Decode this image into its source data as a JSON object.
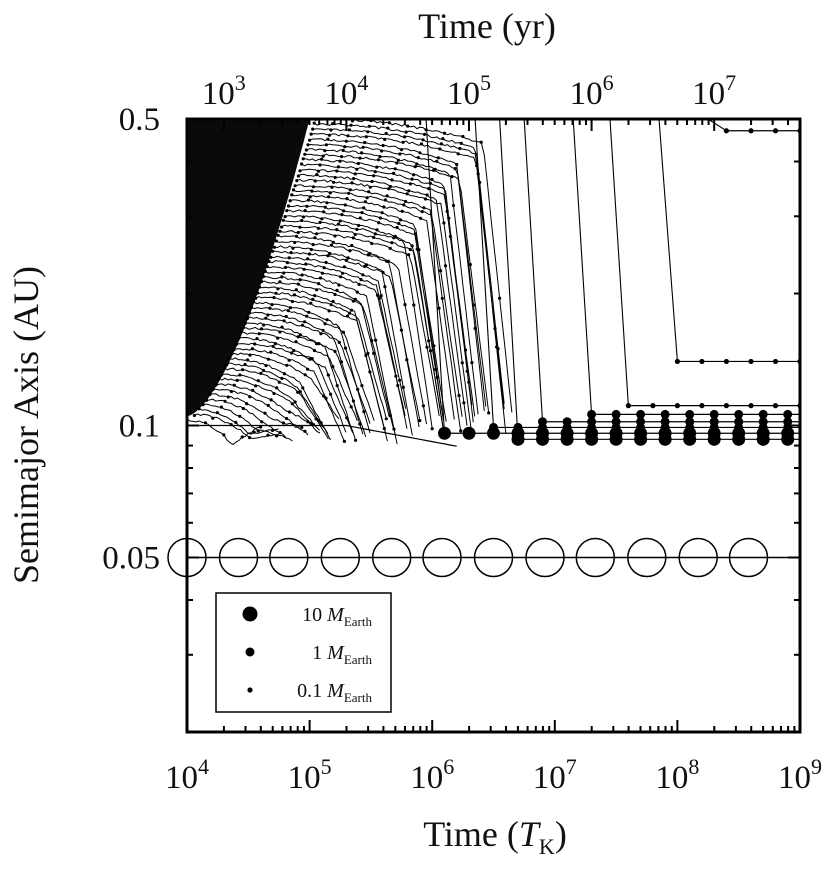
{
  "chart_data": {
    "type": "line",
    "x_bottom": {
      "label_prefix": "Time (",
      "label_var": "T",
      "label_sub": "K",
      "label_suffix": ")",
      "scale": "log",
      "range": [
        10000,
        1000000000
      ],
      "ticks": [
        {
          "value": 10000,
          "base": "10",
          "exp": "4"
        },
        {
          "value": 100000,
          "base": "10",
          "exp": "5"
        },
        {
          "value": 1000000,
          "base": "10",
          "exp": "6"
        },
        {
          "value": 10000000,
          "base": "10",
          "exp": "7"
        },
        {
          "value": 100000000,
          "base": "10",
          "exp": "8"
        },
        {
          "value": 1000000000,
          "base": "10",
          "exp": "9"
        }
      ]
    },
    "x_top": {
      "label": "Time (yr)",
      "scale": "log",
      "ticks": [
        {
          "value": 1000,
          "base": "10",
          "exp": "3"
        },
        {
          "value": 10000,
          "base": "10",
          "exp": "4"
        },
        {
          "value": 100000,
          "base": "10",
          "exp": "5"
        },
        {
          "value": 1000000,
          "base": "10",
          "exp": "6"
        },
        {
          "value": 10000000,
          "base": "10",
          "exp": "7"
        }
      ]
    },
    "y": {
      "label": "Semimajor Axis (AU)",
      "scale": "log",
      "range": [
        0.02,
        0.5
      ],
      "ticks": [
        {
          "value": 0.5,
          "label": "0.5"
        },
        {
          "value": 0.1,
          "label": "0.1"
        },
        {
          "value": 0.05,
          "label": "0.05"
        }
      ]
    },
    "hot_jupiter": {
      "a": 0.05,
      "log_t_markers": [
        4.0,
        4.42,
        4.83,
        5.25,
        5.67,
        6.08,
        6.5,
        6.92,
        7.33,
        7.75,
        8.17,
        8.58
      ]
    },
    "inner_edge_a": 0.1,
    "survivors": [
      {
        "log_t_end": 6.7,
        "a": 0.093,
        "marker": 10
      },
      {
        "log_t_end": 6.1,
        "a": 0.096,
        "marker": 10
      },
      {
        "log_t_end": 6.5,
        "a": 0.099,
        "marker": 1
      },
      {
        "log_t_end": 6.9,
        "a": 0.102,
        "marker": 1
      },
      {
        "log_t_end": 7.3,
        "a": 0.106,
        "marker": 1
      },
      {
        "log_t_end": 7.6,
        "a": 0.111,
        "marker": 0.1
      },
      {
        "log_t_end": 8.0,
        "a": 0.14,
        "marker": 0.1
      },
      {
        "log_t_end": 8.4,
        "a": 0.47,
        "marker": 0.1
      }
    ],
    "n_migrating_embryos": 60,
    "legend": [
      {
        "size": 10,
        "value": "10",
        "var": "M",
        "sub": "Earth"
      },
      {
        "size": 1,
        "value": "1",
        "var": "M",
        "sub": "Earth"
      },
      {
        "size": 0.1,
        "value": "0.1",
        "var": "M",
        "sub": "Earth"
      }
    ],
    "legend_position": "lower-left"
  }
}
